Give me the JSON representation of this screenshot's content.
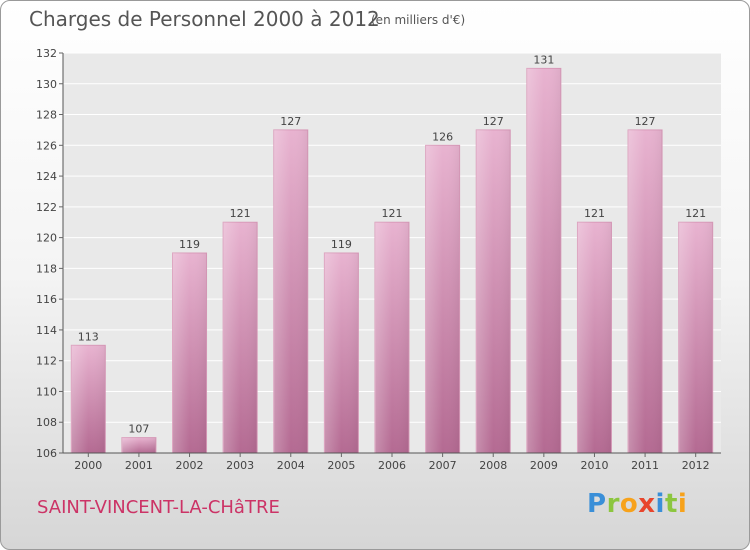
{
  "header": {
    "title": "Charges de Personnel 2000 à 2012",
    "subtitle": "(en milliers d'€)"
  },
  "commune": "SAINT-VINCENT-LA-CHâTRE",
  "logo": {
    "text": "Proxiti",
    "letters": [
      {
        "ch": "P",
        "color": "#3a8fd8"
      },
      {
        "ch": "r",
        "color": "#8cc63f"
      },
      {
        "ch": "o",
        "color": "#f7a21b"
      },
      {
        "ch": "x",
        "color": "#e8452c"
      },
      {
        "ch": "i",
        "color": "#3a8fd8"
      },
      {
        "ch": "t",
        "color": "#8cc63f"
      },
      {
        "ch": "i",
        "color": "#f7a21b"
      }
    ]
  },
  "chart_data": {
    "type": "bar",
    "categories": [
      "2000",
      "2001",
      "2002",
      "2003",
      "2004",
      "2005",
      "2006",
      "2007",
      "2008",
      "2009",
      "2010",
      "2011",
      "2012"
    ],
    "values": [
      113,
      107,
      119,
      121,
      127,
      119,
      121,
      126,
      127,
      131,
      121,
      127,
      121
    ],
    "value_labels": [
      "113",
      "107",
      "119",
      "121",
      "127",
      "119",
      "121",
      "126",
      "127",
      "131",
      "121",
      "127",
      "121"
    ],
    "title": "Charges de Personnel 2000 à 2012",
    "subtitle": "(en milliers d'€)",
    "xlabel": "",
    "ylabel": "",
    "ylim": [
      106,
      132
    ],
    "yticks": [
      "106",
      "108",
      "110",
      "112",
      "114",
      "116",
      "118",
      "120",
      "122",
      "124",
      "126",
      "128",
      "130",
      "132"
    ],
    "grid": true,
    "bar_color": "#c8789f",
    "bar_color_light": "#e7b1cf"
  }
}
